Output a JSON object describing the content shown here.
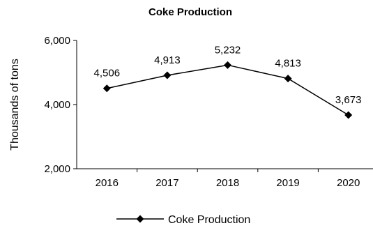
{
  "chart_data": {
    "type": "line",
    "title": "Coke Production",
    "ylabel": "Thousands of tons",
    "xlabel": "",
    "categories": [
      "2016",
      "2017",
      "2018",
      "2019",
      "2020"
    ],
    "series": [
      {
        "name": "Coke Production",
        "values": [
          4506,
          4913,
          5232,
          4813,
          3673
        ],
        "color": "#000000",
        "marker": "diamond"
      }
    ],
    "data_labels": [
      "4,506",
      "4,913",
      "5,232",
      "4,813",
      "3,673"
    ],
    "ylim": [
      2000,
      6000
    ],
    "yticks": [
      2000,
      4000,
      6000
    ],
    "ytick_labels": [
      "2,000",
      "4,000",
      "6,000"
    ],
    "grid": false,
    "legend": "bottom"
  }
}
